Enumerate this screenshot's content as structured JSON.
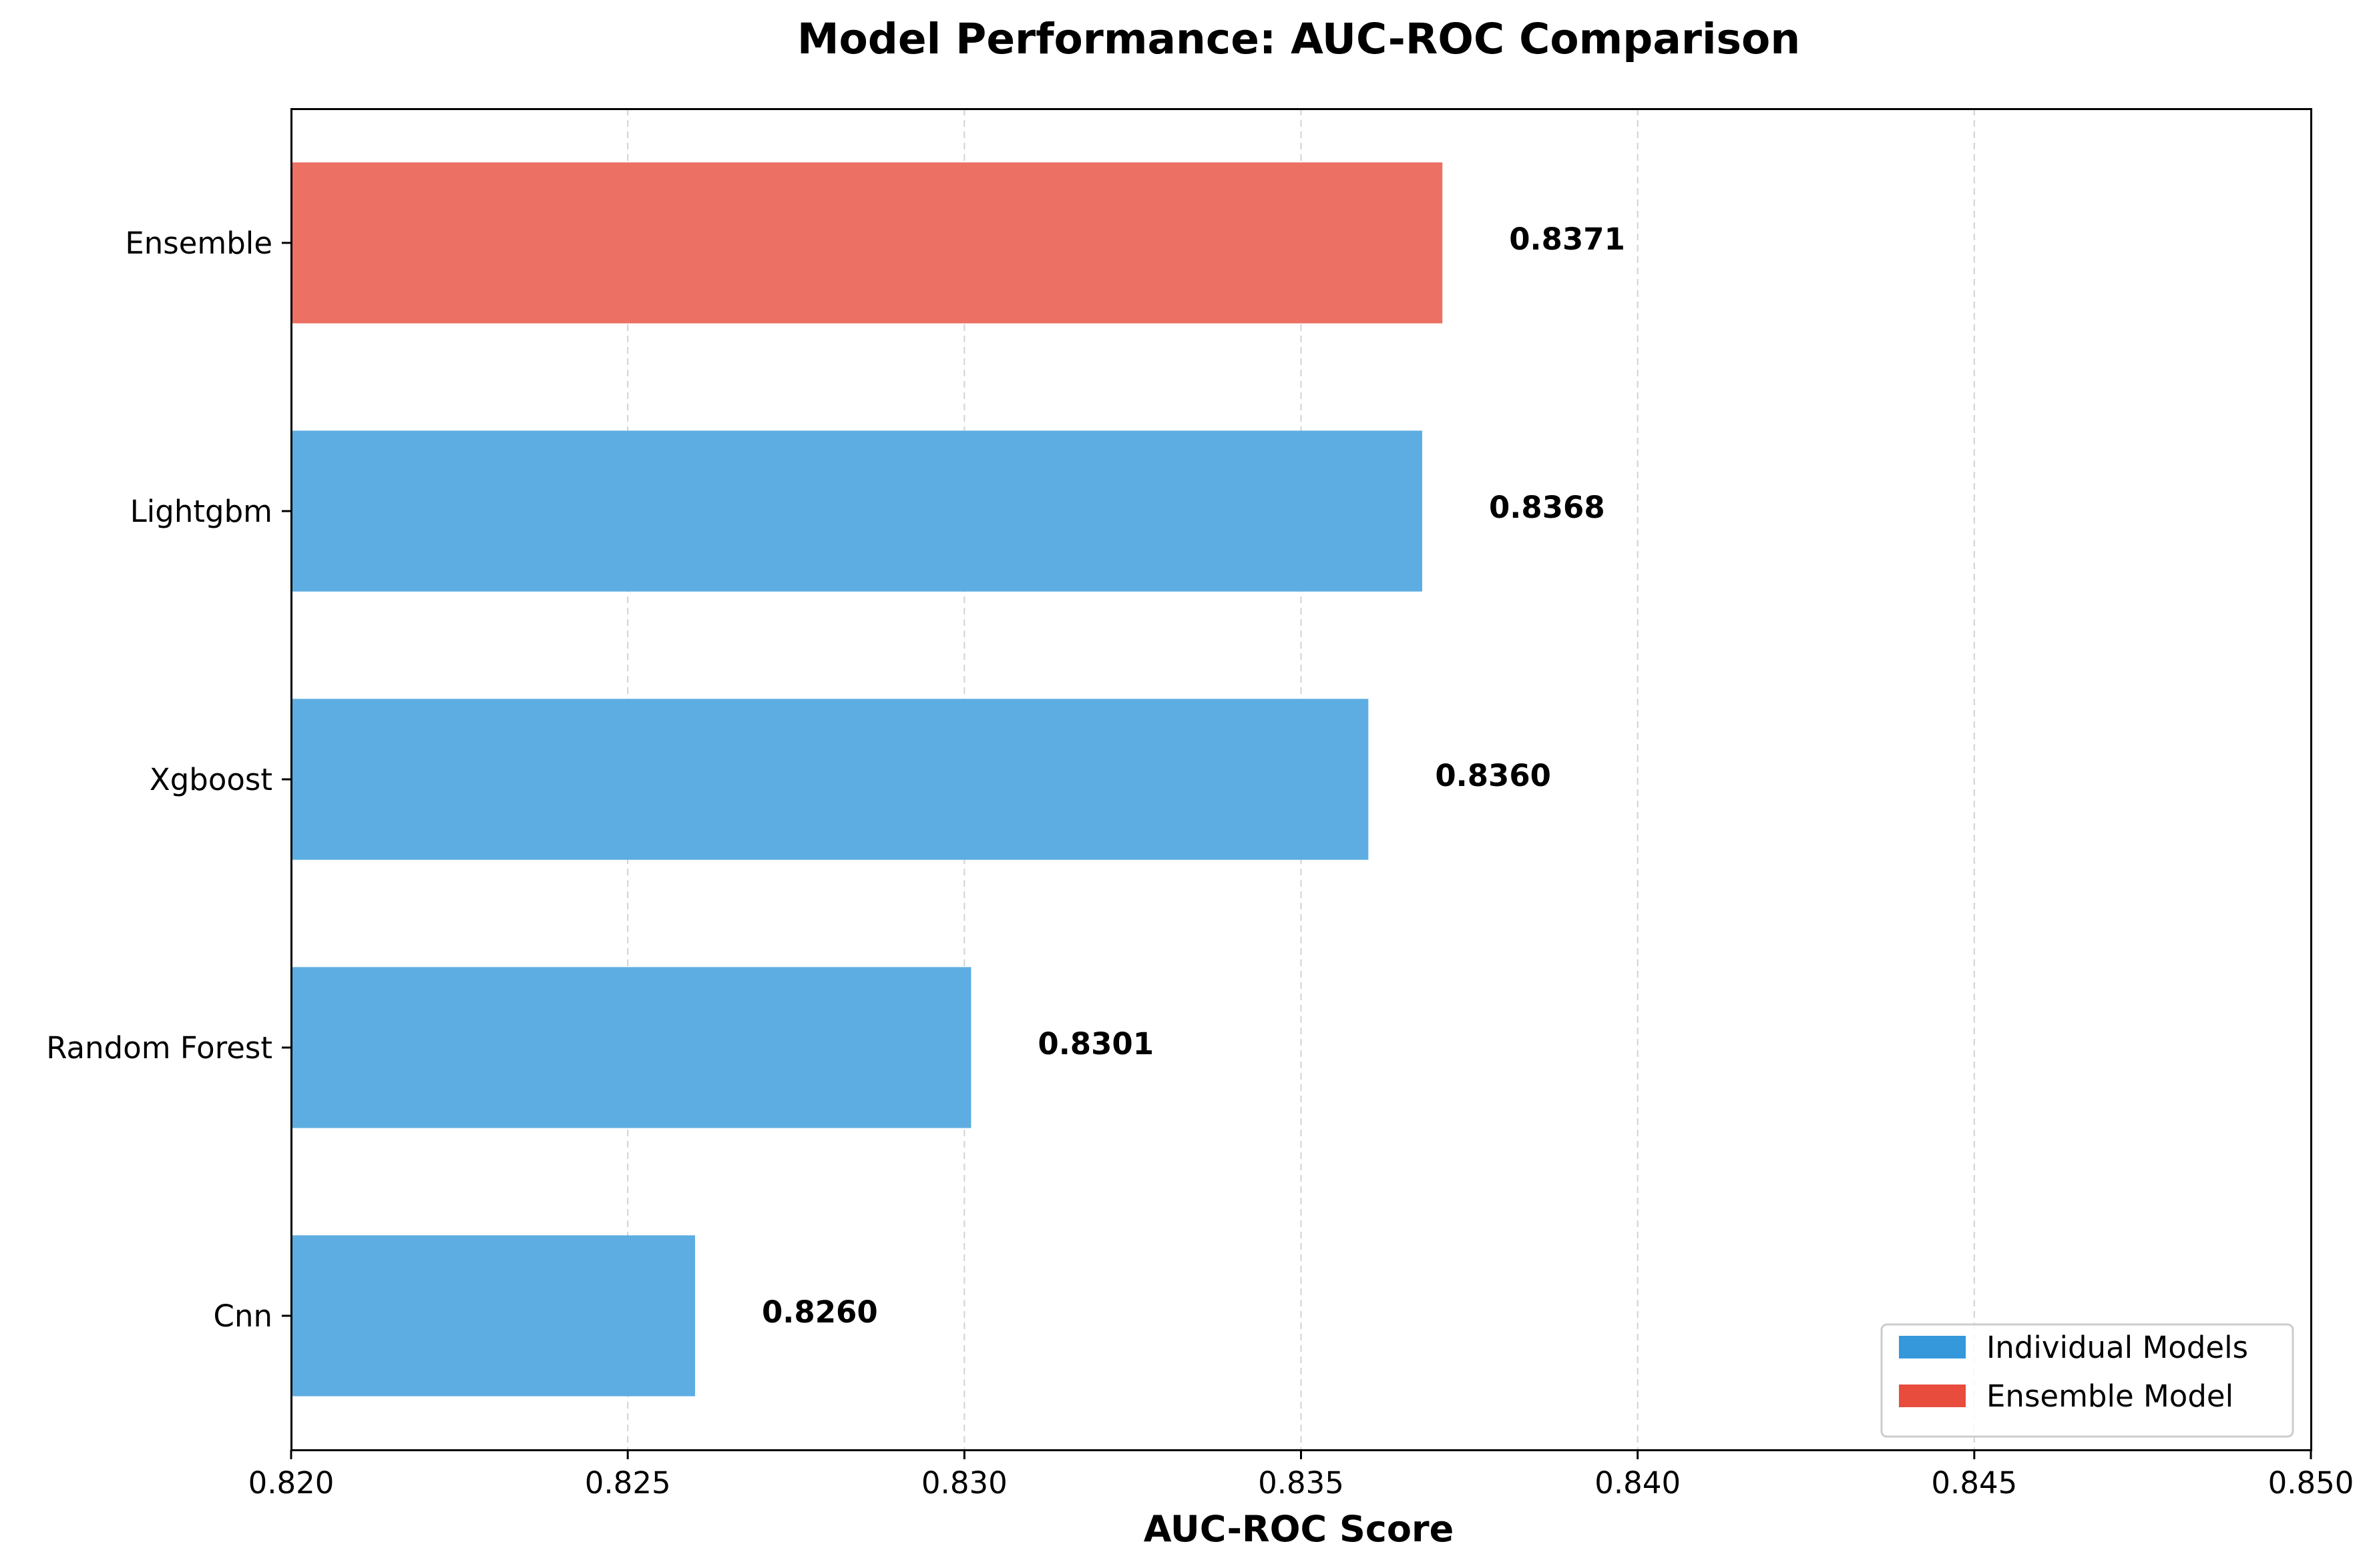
{
  "chart_data": {
    "type": "bar",
    "orientation": "horizontal",
    "title": "Model Performance: AUC-ROC Comparison",
    "xlabel": "AUC-ROC Score",
    "ylabel": "",
    "xlim": [
      0.82,
      0.85
    ],
    "xticks": [
      0.82,
      0.825,
      0.83,
      0.835,
      0.84,
      0.845,
      0.85
    ],
    "xtick_labels": [
      "0.820",
      "0.825",
      "0.830",
      "0.835",
      "0.840",
      "0.845",
      "0.850"
    ],
    "grid": "x-dashed",
    "categories": [
      "Ensemble",
      "Lightgbm",
      "Xgboost",
      "Random Forest",
      "Cnn"
    ],
    "values": [
      0.8371,
      0.8368,
      0.836,
      0.8301,
      0.826
    ],
    "value_labels": [
      "0.8371",
      "0.8368",
      "0.8360",
      "0.8301",
      "0.8260"
    ],
    "groups": [
      "Ensemble Model",
      "Individual Models",
      "Individual Models",
      "Individual Models",
      "Individual Models"
    ],
    "legend": {
      "placement": "lower-right",
      "entries": [
        {
          "label": "Individual Models",
          "color": "#3498db"
        },
        {
          "label": "Ensemble Model",
          "color": "#e74c3c"
        }
      ]
    },
    "colors": {
      "Individual Models": "#5dade2",
      "Ensemble Model": "#ec7063"
    }
  }
}
